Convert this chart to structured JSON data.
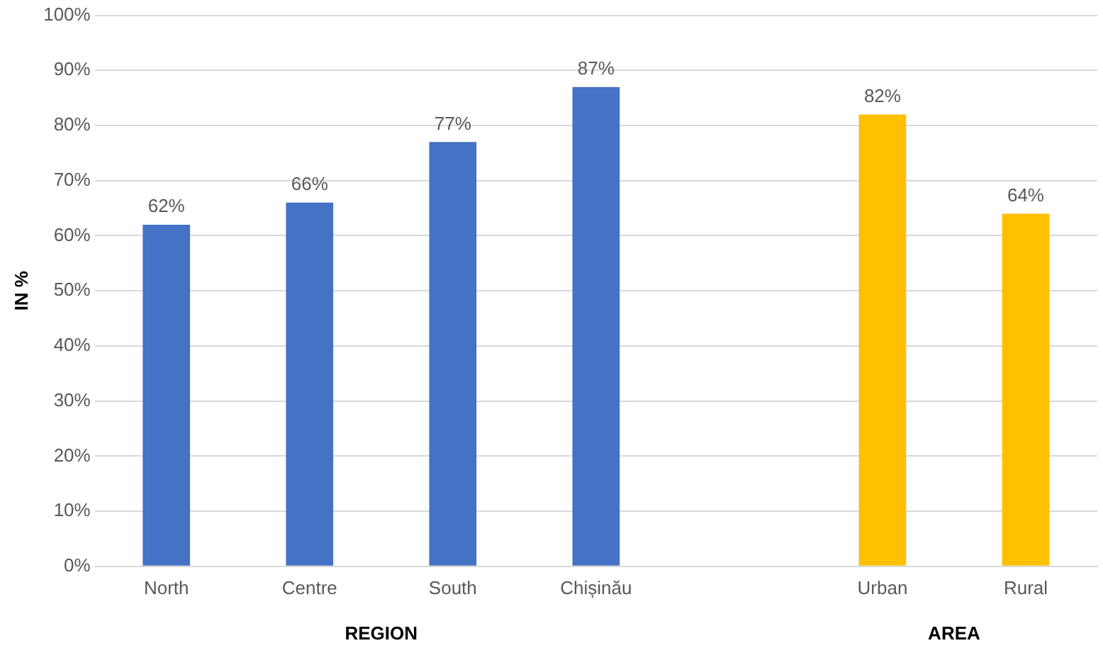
{
  "chart_data": {
    "type": "bar",
    "ylabel": "IN %",
    "categories": [
      "North",
      "Centre",
      "South",
      "Chișinău",
      null,
      "Urban",
      "Rural"
    ],
    "values": [
      62,
      66,
      77,
      87,
      null,
      82,
      64
    ],
    "colors": [
      "#4472c4",
      "#4472c4",
      "#4472c4",
      "#4472c4",
      "#4472c4",
      "#ffc000",
      "#ffc000"
    ],
    "value_labels": [
      "62%",
      "66%",
      "77%",
      "87%",
      null,
      "82%",
      "64%"
    ],
    "ylim": [
      0,
      100
    ],
    "yticks": [
      {
        "value": 0,
        "label": "0%"
      },
      {
        "value": 10,
        "label": "10%"
      },
      {
        "value": 20,
        "label": "20%"
      },
      {
        "value": 30,
        "label": "30%"
      },
      {
        "value": 40,
        "label": "40%"
      },
      {
        "value": 50,
        "label": "50%"
      },
      {
        "value": 60,
        "label": "60%"
      },
      {
        "value": 70,
        "label": "70%"
      },
      {
        "value": 80,
        "label": "80%"
      },
      {
        "value": 90,
        "label": "90%"
      },
      {
        "value": 100,
        "label": "100%"
      }
    ],
    "grid": "y",
    "annotations": [
      "REGION",
      "AREA"
    ]
  }
}
